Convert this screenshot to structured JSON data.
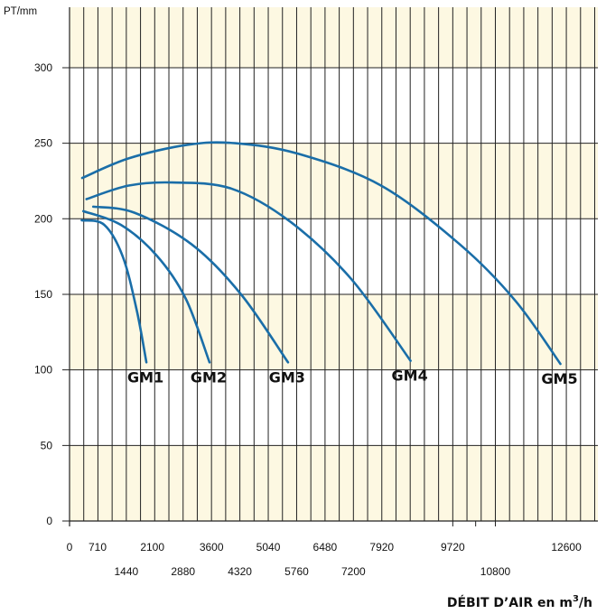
{
  "chart_data": {
    "type": "line",
    "ylabel": "PT/mm",
    "xlabel": "DÉBIT D’AIR en m",
    "xlabel_sup": "3",
    "xlabel_suffix": "/h",
    "ylim": [
      0,
      340
    ],
    "xlim": [
      0,
      13400
    ],
    "grid": true,
    "band_color": "#fdf8e2",
    "grid_color": "#222222",
    "line_color": "#1a6ea8",
    "y_ticks": [
      "0",
      "50",
      "100",
      "150",
      "200",
      "250",
      "300"
    ],
    "x_ticks_row1": [
      "0",
      "710",
      "2100",
      "3600",
      "5040",
      "6480",
      "7920",
      "9720",
      "12600"
    ],
    "x_ticks_row2": [
      "1440",
      "2880",
      "4320",
      "5760",
      "7200",
      "10800"
    ],
    "series": [
      {
        "name": "GM1",
        "x": [
          310,
          880,
          1350,
          1700,
          1950
        ],
        "y": [
          199,
          196,
          175,
          140,
          105
        ]
      },
      {
        "name": "GM2",
        "x": [
          350,
          1300,
          2200,
          2950,
          3550
        ],
        "y": [
          205,
          196,
          176,
          147,
          105
        ]
      },
      {
        "name": "GM3",
        "x": [
          600,
          1650,
          3100,
          4350,
          5540
        ],
        "y": [
          208,
          204,
          183,
          150,
          105
        ]
      },
      {
        "name": "GM4",
        "x": [
          430,
          1500,
          2600,
          4100,
          5600,
          7150,
          8650
        ],
        "y": [
          213,
          222,
          224,
          220,
          198,
          160,
          106
        ]
      },
      {
        "name": "GM5",
        "x": [
          320,
          1500,
          3000,
          4200,
          5800,
          7900,
          9900,
          11300,
          12450
        ],
        "y": [
          227,
          240,
          249,
          250,
          243,
          222,
          183,
          146,
          104
        ]
      }
    ]
  }
}
